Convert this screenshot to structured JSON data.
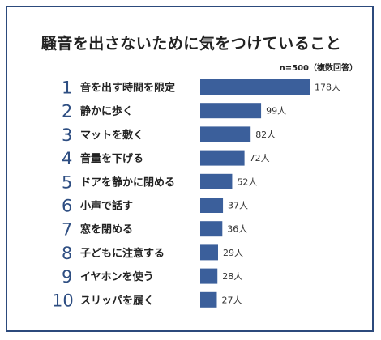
{
  "chart_data": {
    "type": "bar",
    "orientation": "horizontal",
    "title": "騒音を出さないために気をつけていること",
    "note": "n=500（複数回答）",
    "ranks": [
      "1",
      "2",
      "3",
      "4",
      "5",
      "6",
      "7",
      "8",
      "9",
      "10"
    ],
    "categories": [
      "音を出す時間を限定",
      "静かに歩く",
      "マットを敷く",
      "音量を下げる",
      "ドアを静かに閉める",
      "小声で話す",
      "窓を閉める",
      "子どもに注意する",
      "イヤホンを使う",
      "スリッパを履く"
    ],
    "values": [
      178,
      99,
      82,
      72,
      52,
      37,
      36,
      29,
      28,
      27
    ],
    "value_labels": [
      "178人",
      "99人",
      "82人",
      "72人",
      "52人",
      "37人",
      "36人",
      "29人",
      "28人",
      "27人"
    ],
    "xlim": [
      0,
      178
    ],
    "grid": false,
    "legend": "none"
  },
  "colors": {
    "bar": "#3b5f9b",
    "rank": "#2e4e82",
    "border": "#2c4a7c"
  }
}
